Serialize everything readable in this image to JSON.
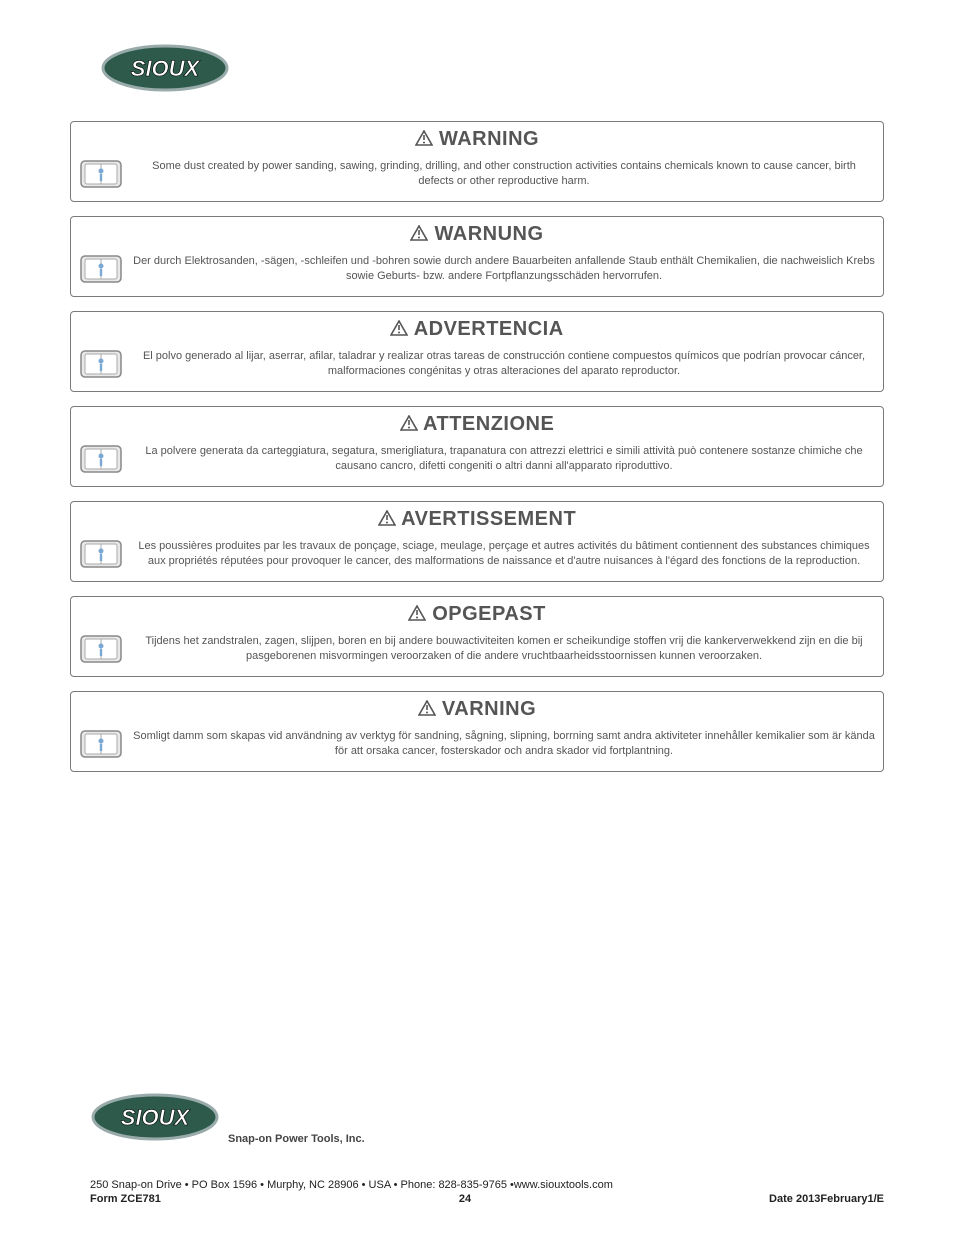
{
  "logo_text": "SIOUX",
  "blocks": [
    {
      "heading": "WARNING",
      "body": "Some dust created by power sanding, sawing, grinding, drilling, and other construction activities contains chemicals known to cause cancer, birth defects or other reproductive harm."
    },
    {
      "heading": "WARNUNG",
      "body": "Der durch Elektrosanden, -sägen, -schleifen und -bohren sowie durch andere Bauarbeiten anfallende Staub enthält Chemikalien, die nachweislich Krebs sowie Geburts- bzw. andere Fortpflanzungsschäden hervorrufen."
    },
    {
      "heading": "ADVERTENCIA",
      "body": "El polvo generado al lijar, aserrar, afilar, taladrar y realizar otras tareas de construcción contiene compuestos químicos que podrían provocar cáncer, malformaciones congénitas y otras alteraciones del aparato reproductor."
    },
    {
      "heading": "ATTENZIONE",
      "body": "La polvere generata da carteggiatura, segatura, smerigliatura, trapanatura con attrezzi elettrici e simili attività può contenere sostanze chimiche che causano cancro, difetti congeniti o altri danni all'apparato riproduttivo."
    },
    {
      "heading": "AVERTISSEMENT",
      "body": "Les poussières produites par les travaux de ponçage, sciage, meulage, perçage et autres activités du bâtiment contiennent des substances chimiques aux propriétés réputées pour provoquer le cancer, des malformations de naissance et d'autre nuisances à l'égard des fonctions de la reproduction."
    },
    {
      "heading": "OPGEPAST",
      "body": "Tijdens het zandstralen, zagen, slijpen, boren en bij andere bouwactiviteiten komen er scheikundige stoffen vrij die kankerverwekkend zijn en die bij pasgeborenen misvormingen veroorzaken of die andere vruchtbaarheidsstoornissen kunnen veroorzaken."
    },
    {
      "heading": "VARNING",
      "body": "Somligt damm som skapas vid användning av verktyg för sandning, sågning, slipning, borrning samt andra aktiviteter innehåller kemikalier som är kända för att orsaka cancer, fosterskador och andra skador vid fortplantning."
    }
  ],
  "footer_company": "Snap-on Power Tools, Inc.",
  "footer_address": "250 Snap-on Drive • PO Box 1596 • Murphy, NC  28906 • USA • Phone: 828-835-9765 •www.siouxtools.com",
  "footer_form": "Form ZCE781",
  "footer_page": "24",
  "footer_date": "Date 2013February1/E"
}
